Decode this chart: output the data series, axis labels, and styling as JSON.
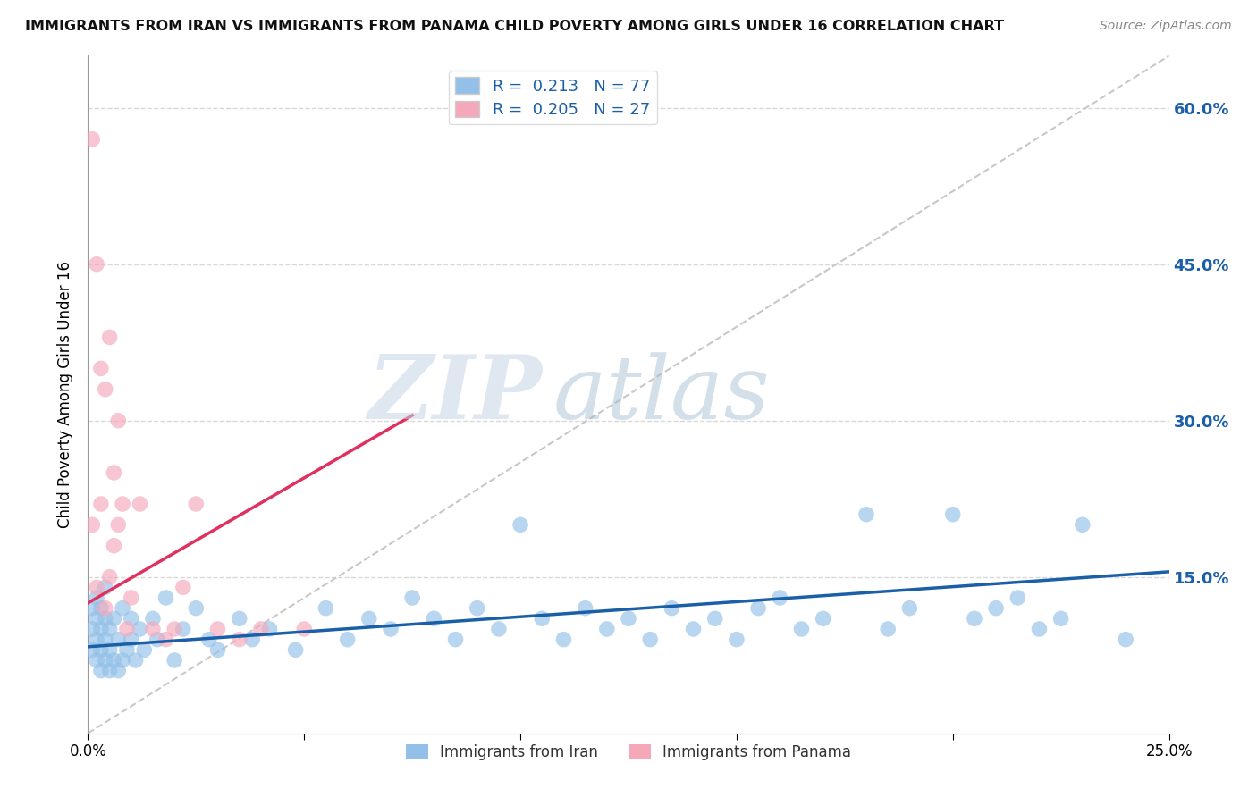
{
  "title": "IMMIGRANTS FROM IRAN VS IMMIGRANTS FROM PANAMA CHILD POVERTY AMONG GIRLS UNDER 16 CORRELATION CHART",
  "source": "Source: ZipAtlas.com",
  "xlabel_iran": "Immigrants from Iran",
  "xlabel_panama": "Immigrants from Panama",
  "ylabel": "Child Poverty Among Girls Under 16",
  "iran_R": 0.213,
  "iran_N": 77,
  "panama_R": 0.205,
  "panama_N": 27,
  "iran_color": "#92c0e8",
  "panama_color": "#f4a8ba",
  "iran_line_color": "#1a5fa8",
  "panama_line_color": "#e03060",
  "diag_line_color": "#c8c8c8",
  "xlim": [
    0.0,
    0.25
  ],
  "ylim": [
    0.0,
    0.65
  ],
  "yticks": [
    0.0,
    0.15,
    0.3,
    0.45,
    0.6
  ],
  "ytick_labels": [
    "",
    "15.0%",
    "30.0%",
    "45.0%",
    "60.0%"
  ],
  "background_color": "#ffffff",
  "grid_color": "#d8d8d8",
  "watermark_zip": "ZIP",
  "watermark_atlas": "atlas",
  "watermark_color_zip": "#c8d8e8",
  "watermark_color_atlas": "#a8c0d8",
  "iran_x": [
    0.001,
    0.001,
    0.001,
    0.002,
    0.002,
    0.002,
    0.002,
    0.003,
    0.003,
    0.003,
    0.003,
    0.004,
    0.004,
    0.004,
    0.004,
    0.005,
    0.005,
    0.005,
    0.006,
    0.006,
    0.007,
    0.007,
    0.008,
    0.008,
    0.009,
    0.01,
    0.01,
    0.011,
    0.012,
    0.013,
    0.015,
    0.016,
    0.018,
    0.02,
    0.022,
    0.025,
    0.028,
    0.03,
    0.035,
    0.038,
    0.042,
    0.048,
    0.055,
    0.06,
    0.065,
    0.07,
    0.075,
    0.08,
    0.085,
    0.09,
    0.095,
    0.1,
    0.105,
    0.11,
    0.115,
    0.12,
    0.125,
    0.13,
    0.135,
    0.14,
    0.145,
    0.15,
    0.155,
    0.16,
    0.165,
    0.17,
    0.18,
    0.185,
    0.19,
    0.2,
    0.205,
    0.21,
    0.215,
    0.22,
    0.225,
    0.23,
    0.24
  ],
  "iran_y": [
    0.08,
    0.1,
    0.12,
    0.07,
    0.09,
    0.11,
    0.13,
    0.06,
    0.08,
    0.1,
    0.12,
    0.07,
    0.09,
    0.11,
    0.14,
    0.06,
    0.08,
    0.1,
    0.07,
    0.11,
    0.06,
    0.09,
    0.07,
    0.12,
    0.08,
    0.09,
    0.11,
    0.07,
    0.1,
    0.08,
    0.11,
    0.09,
    0.13,
    0.07,
    0.1,
    0.12,
    0.09,
    0.08,
    0.11,
    0.09,
    0.1,
    0.08,
    0.12,
    0.09,
    0.11,
    0.1,
    0.13,
    0.11,
    0.09,
    0.12,
    0.1,
    0.2,
    0.11,
    0.09,
    0.12,
    0.1,
    0.11,
    0.09,
    0.12,
    0.1,
    0.11,
    0.09,
    0.12,
    0.13,
    0.1,
    0.11,
    0.21,
    0.1,
    0.12,
    0.21,
    0.11,
    0.12,
    0.13,
    0.1,
    0.11,
    0.2,
    0.09
  ],
  "panama_x": [
    0.001,
    0.001,
    0.002,
    0.002,
    0.003,
    0.003,
    0.004,
    0.004,
    0.005,
    0.005,
    0.006,
    0.006,
    0.007,
    0.007,
    0.008,
    0.009,
    0.01,
    0.012,
    0.015,
    0.018,
    0.02,
    0.022,
    0.025,
    0.03,
    0.035,
    0.04,
    0.05
  ],
  "panama_y": [
    0.57,
    0.2,
    0.45,
    0.14,
    0.35,
    0.22,
    0.33,
    0.12,
    0.38,
    0.15,
    0.25,
    0.18,
    0.3,
    0.2,
    0.22,
    0.1,
    0.13,
    0.22,
    0.1,
    0.09,
    0.1,
    0.14,
    0.22,
    0.1,
    0.09,
    0.1,
    0.1
  ],
  "iran_trend_x0": 0.0,
  "iran_trend_y0": 0.083,
  "iran_trend_x1": 0.25,
  "iran_trend_y1": 0.155,
  "panama_trend_x0": 0.0,
  "panama_trend_y0": 0.125,
  "panama_trend_x1": 0.075,
  "panama_trend_y1": 0.305
}
